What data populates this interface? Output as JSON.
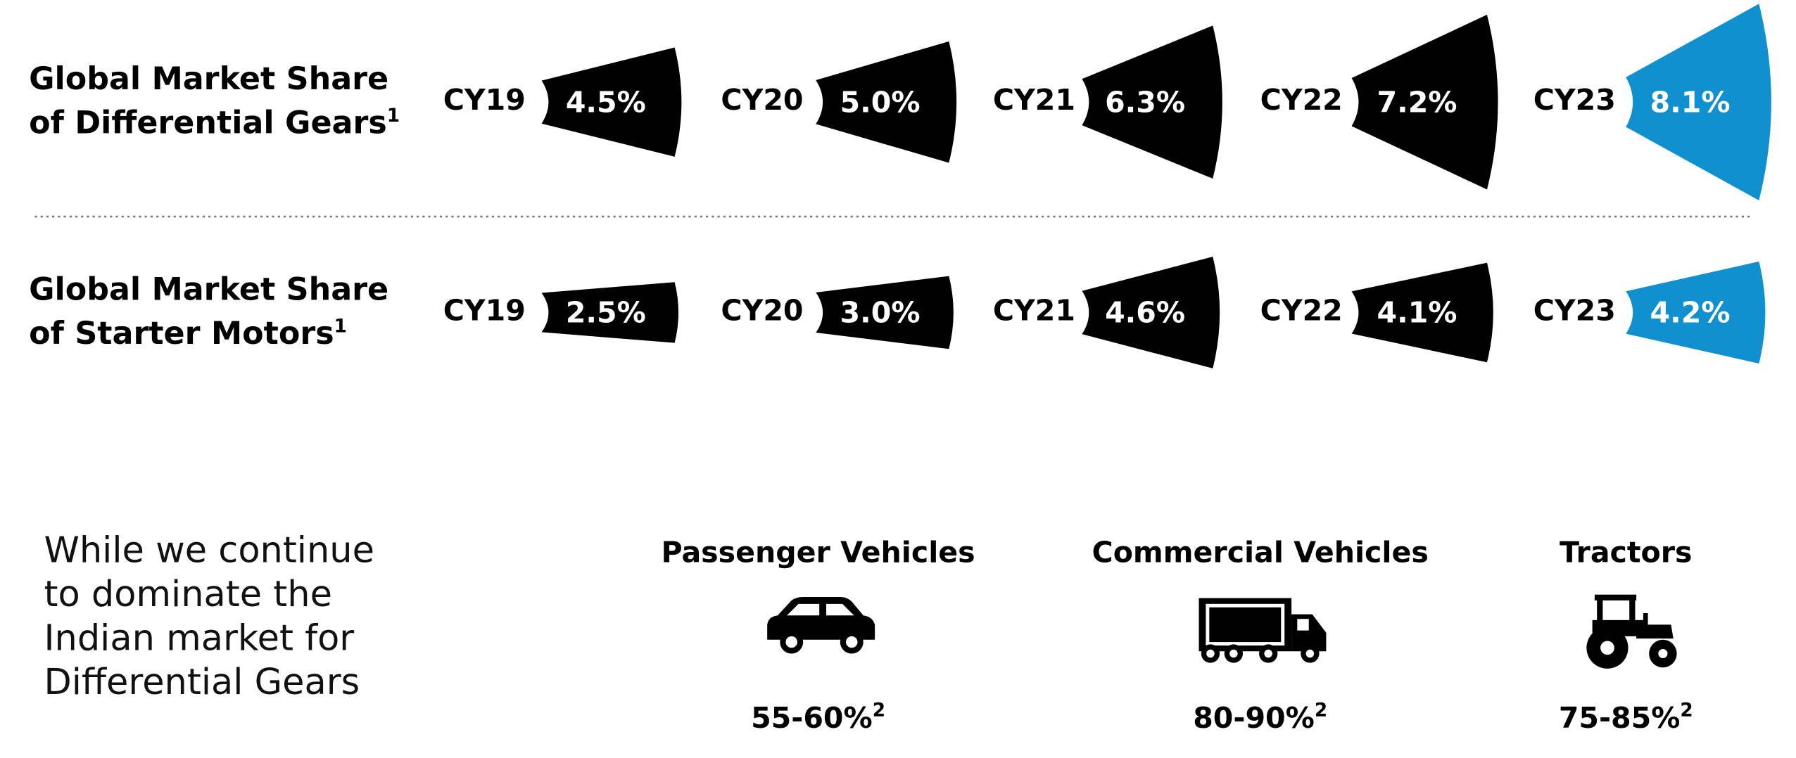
{
  "rows": [
    {
      "title_lines": [
        "Global Market Share",
        "of Differential Gears"
      ],
      "note": "1",
      "items": [
        {
          "year": "CY19",
          "value": 4.5,
          "label": "4.5%"
        },
        {
          "year": "CY20",
          "value": 5.0,
          "label": "5.0%"
        },
        {
          "year": "CY21",
          "value": 6.3,
          "label": "6.3%"
        },
        {
          "year": "CY22",
          "value": 7.2,
          "label": "7.2%"
        },
        {
          "year": "CY23",
          "value": 8.1,
          "label": "8.1%"
        }
      ]
    },
    {
      "title_lines": [
        "Global Market Share",
        "of Starter Motors"
      ],
      "note": "1",
      "items": [
        {
          "year": "CY19",
          "value": 2.5,
          "label": "2.5%"
        },
        {
          "year": "CY20",
          "value": 3.0,
          "label": "3.0%"
        },
        {
          "year": "CY21",
          "value": 4.6,
          "label": "4.6%"
        },
        {
          "year": "CY22",
          "value": 4.1,
          "label": "4.1%"
        },
        {
          "year": "CY23",
          "value": 4.2,
          "label": "4.2%"
        }
      ]
    }
  ],
  "colors": {
    "past": "#000000",
    "latest": "#1190d0"
  },
  "statement": [
    "While we continue",
    "to dominate the",
    "Indian market for",
    "Differential Gears"
  ],
  "segments": [
    {
      "name": "Passenger Vehicles",
      "share": "55-60%",
      "note": "2"
    },
    {
      "name": "Commercial Vehicles",
      "share": "80-90%",
      "note": "2"
    },
    {
      "name": "Tractors",
      "share": "75-85%",
      "note": "2"
    }
  ]
}
